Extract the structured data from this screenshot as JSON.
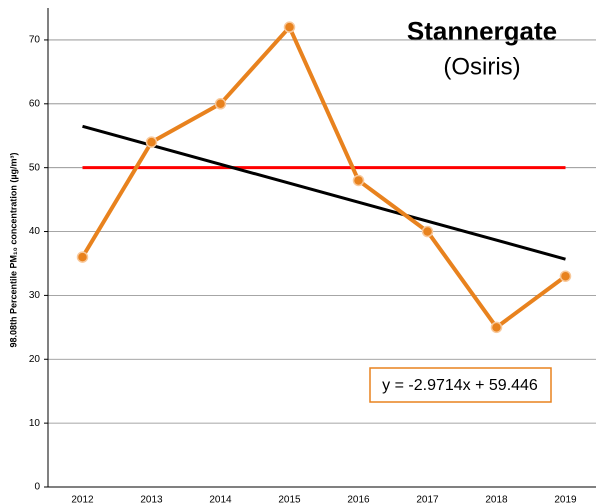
{
  "chart_data": {
    "type": "line",
    "title": "Stannergate",
    "subtitle": "(Osiris)",
    "y_axis_label": "98.08th Percentile  PM₁₀ concentration (µg/m³)",
    "categories": [
      "2012",
      "2013",
      "2014",
      "2015",
      "2016",
      "2017",
      "2018",
      "2019"
    ],
    "series": [
      {
        "color": "#e8821e",
        "values": [
          36,
          54,
          60,
          72,
          48,
          40,
          25,
          33
        ]
      }
    ],
    "reference_line": {
      "value": 50,
      "color": "#ff0000"
    },
    "trendline": {
      "slope": -2.9714,
      "intercept": 59.446,
      "color": "#000000",
      "label": "y = -2.9714x + 59.446"
    },
    "ylim": [
      0,
      75
    ],
    "yticks": [
      0,
      10,
      20,
      30,
      40,
      50,
      60,
      70
    ],
    "grid": true
  }
}
